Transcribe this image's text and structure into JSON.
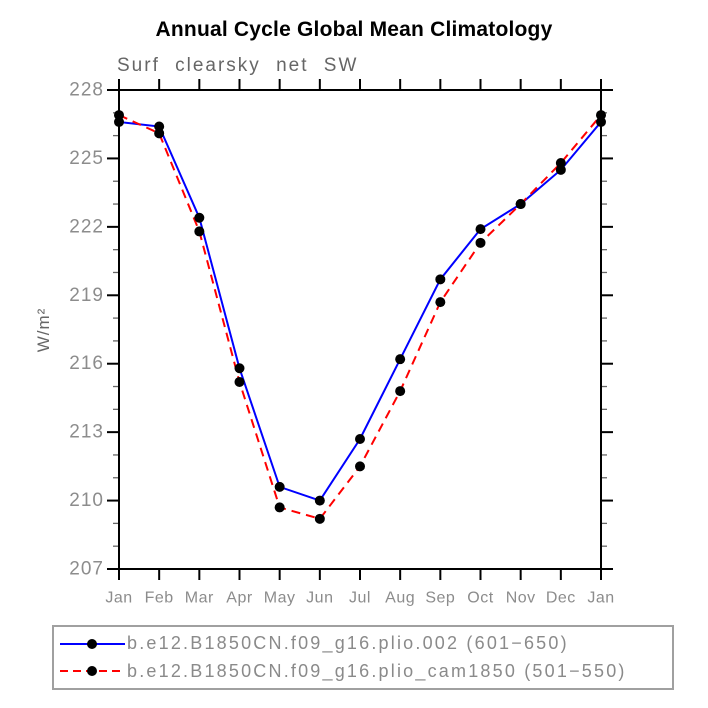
{
  "title": "Annual Cycle Global Mean Climatology",
  "subtitle": "Surf clearsky net SW",
  "chart_data": {
    "type": "line",
    "x_categories": [
      "Jan",
      "Feb",
      "Mar",
      "Apr",
      "May",
      "Jun",
      "Jul",
      "Aug",
      "Sep",
      "Oct",
      "Nov",
      "Dec",
      "Jan"
    ],
    "xlabel": "",
    "ylabel": "W/m²",
    "ylim": [
      207,
      228
    ],
    "y_major_tick_step": 3,
    "y_minor_tick_step": 1,
    "y_major_ticks": [
      207,
      210,
      213,
      216,
      219,
      222,
      225,
      228
    ],
    "grid": false,
    "legend_position": "bottom",
    "series": [
      {
        "name": "b.e12.B1850CN.f09_g16.plio.002 (601−650)",
        "color": "#0000ff",
        "line_style": "solid",
        "marker": "filled-circle",
        "marker_color": "#000000",
        "values": [
          226.6,
          226.4,
          222.4,
          215.8,
          210.6,
          210.0,
          212.7,
          216.2,
          219.7,
          221.9,
          223.0,
          224.5,
          226.6
        ]
      },
      {
        "name": "b.e12.B1850CN.f09_g16.plio_cam1850 (501−550)",
        "color": "#ff0000",
        "line_style": "dashed",
        "marker": "filled-circle",
        "marker_color": "#000000",
        "values": [
          226.9,
          226.1,
          221.8,
          215.2,
          209.7,
          209.2,
          211.5,
          214.8,
          218.7,
          221.3,
          223.0,
          224.8,
          226.9
        ]
      }
    ]
  },
  "colors": {
    "background": "#ffffff",
    "axis": "#000000",
    "minor_tick": "#666666",
    "tick_label": "#8c8c8c",
    "subtitle_text": "#666666",
    "legend_text": "#8a8a8a",
    "legend_border": "#a0a0a0",
    "series_blue": "#0000ff",
    "series_red": "#ff0000",
    "marker": "#000000"
  }
}
